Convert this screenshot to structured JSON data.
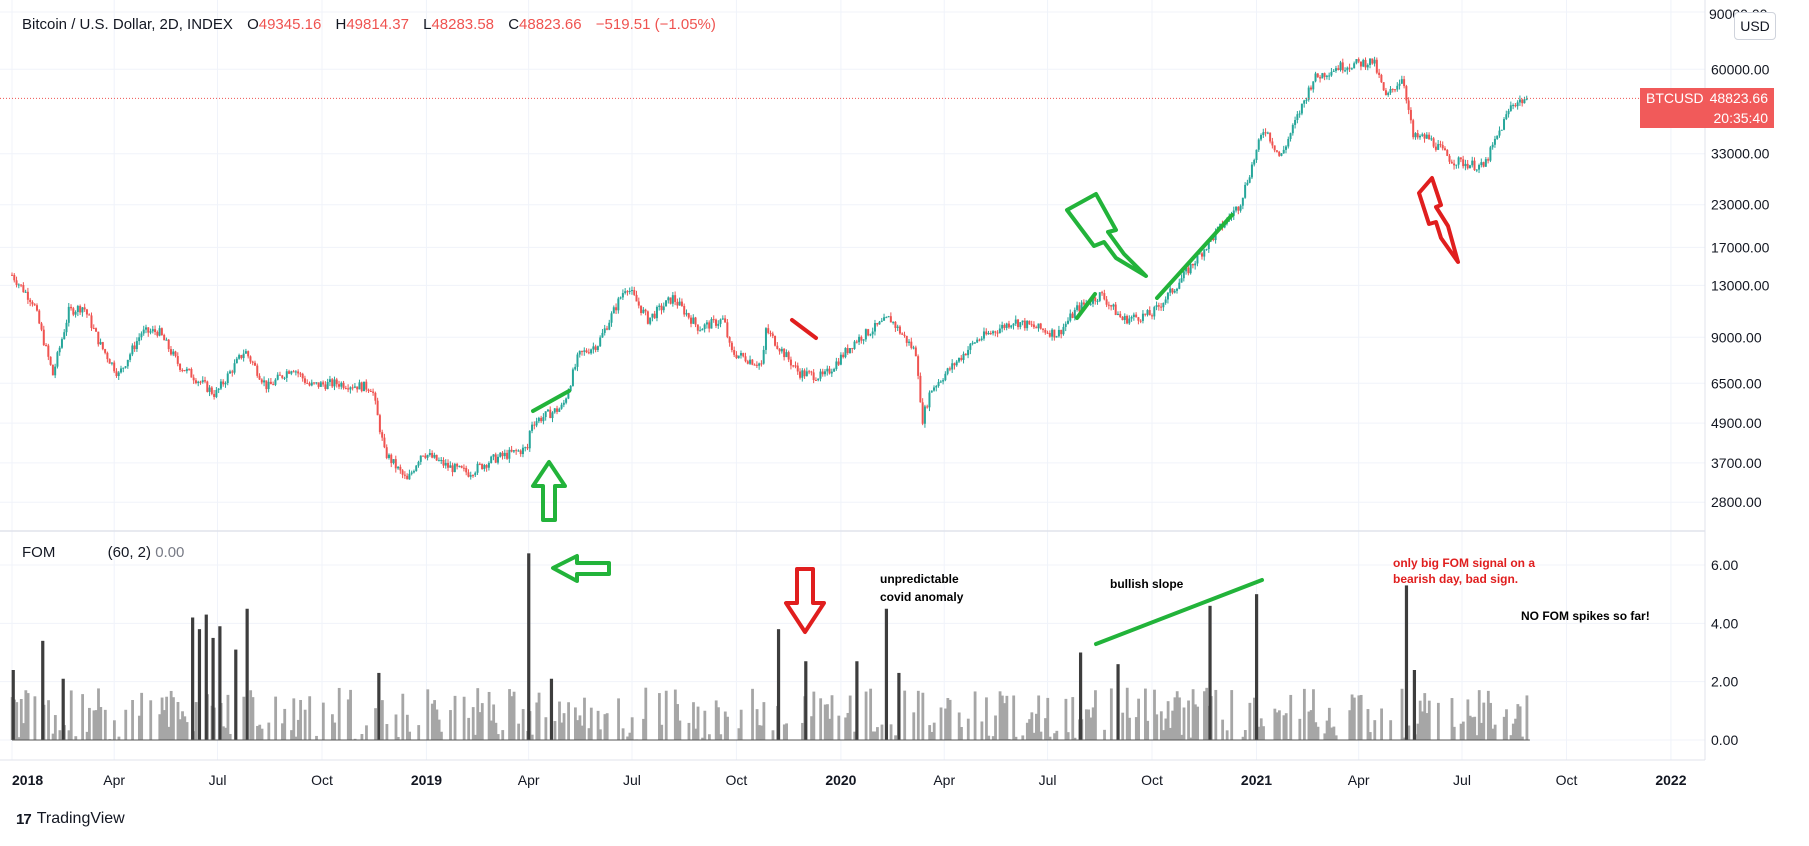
{
  "header": {
    "symbol": "Bitcoin / U.S. Dollar, 2D, INDEX",
    "o_label": "O",
    "o": "49345.16",
    "h_label": "H",
    "h": "49814.37",
    "l_label": "L",
    "l": "48283.58",
    "c_label": "C",
    "c": "48823.66",
    "change": "−519.51 (−1.05%)"
  },
  "currency_badge": "USD",
  "price_label": {
    "ticker": "BTCUSD",
    "price": "48823.66",
    "countdown": "20:35:40"
  },
  "indicator": {
    "name": "FOM",
    "params": "(60, 2)",
    "value": "0.00"
  },
  "branding": {
    "logo": "17",
    "name": "TradingView"
  },
  "annotations": [
    {
      "text": "unpredictable",
      "color": "#000000"
    },
    {
      "text": "covid anomaly",
      "color": "#000000"
    },
    {
      "text": "bullish slope",
      "color": "#000000"
    },
    {
      "text": "only big FOM signal on a",
      "color": "#e01e1e"
    },
    {
      "text": "bearish day, bad sign.",
      "color": "#e01e1e"
    },
    {
      "text": "NO FOM spikes so far!",
      "color": "#000000"
    }
  ],
  "colors": {
    "up": "#26a69a",
    "down": "#ef5350",
    "green_mark": "#22b33a",
    "red_mark": "#e01e1e",
    "bar_dark": "#3d3d3d",
    "bar_light": "#a6a6a6"
  },
  "chart_data": [
    {
      "type": "candlestick",
      "title": "Bitcoin / U.S. Dollar, 2D, INDEX",
      "y_scale": "log",
      "ylim": [
        2400,
        90000
      ],
      "y_ticks": [
        2800,
        3700,
        4900,
        6500,
        9000,
        13000,
        17000,
        23000,
        33000,
        60000,
        90000
      ],
      "y_tick_labels": [
        "2800.00",
        "3700.00",
        "4900.00",
        "6500.00",
        "9000.00",
        "13000.00",
        "17000.00",
        "23000.00",
        "33000.00",
        "60000.00",
        "90000.00"
      ],
      "x_range": [
        "2018-01-01",
        "2022-01-31"
      ],
      "x_ticks": [
        "2018-01-01",
        "2018-04-01",
        "2018-07-01",
        "2018-10-01",
        "2019-01-01",
        "2019-04-01",
        "2019-07-01",
        "2019-10-01",
        "2020-01-01",
        "2020-04-01",
        "2020-07-01",
        "2020-10-01",
        "2021-01-01",
        "2021-04-01",
        "2021-07-01",
        "2021-10-01",
        "2022-01-01"
      ],
      "x_tick_labels": [
        "2018",
        "Apr",
        "Jul",
        "Oct",
        "2019",
        "Apr",
        "Jul",
        "Oct",
        "2020",
        "Apr",
        "Jul",
        "Oct",
        "2021",
        "Apr",
        "Jul",
        "Oct",
        "2022"
      ],
      "last_price": 48823.66,
      "close_path": [
        [
          "2018-01-01",
          14000
        ],
        [
          "2018-01-20",
          11500
        ],
        [
          "2018-02-06",
          6900
        ],
        [
          "2018-02-20",
          10800
        ],
        [
          "2018-03-05",
          11200
        ],
        [
          "2018-03-20",
          8500
        ],
        [
          "2018-04-05",
          6900
        ],
        [
          "2018-04-25",
          9300
        ],
        [
          "2018-05-10",
          9400
        ],
        [
          "2018-05-28",
          7400
        ],
        [
          "2018-06-15",
          6600
        ],
        [
          "2018-06-29",
          6000
        ],
        [
          "2018-07-25",
          8200
        ],
        [
          "2018-08-14",
          6300
        ],
        [
          "2018-09-05",
          7300
        ],
        [
          "2018-09-20",
          6400
        ],
        [
          "2018-10-15",
          6500
        ],
        [
          "2018-11-14",
          6300
        ],
        [
          "2018-11-25",
          4000
        ],
        [
          "2018-12-15",
          3250
        ],
        [
          "2018-12-28",
          4000
        ],
        [
          "2019-01-20",
          3600
        ],
        [
          "2019-02-07",
          3450
        ],
        [
          "2019-03-01",
          3800
        ],
        [
          "2019-03-31",
          4100
        ],
        [
          "2019-04-03",
          4900
        ],
        [
          "2019-05-01",
          5500
        ],
        [
          "2019-05-15",
          7900
        ],
        [
          "2019-06-01",
          8600
        ],
        [
          "2019-06-26",
          13000
        ],
        [
          "2019-07-15",
          10200
        ],
        [
          "2019-08-06",
          11900
        ],
        [
          "2019-08-29",
          9600
        ],
        [
          "2019-09-20",
          10200
        ],
        [
          "2019-09-26",
          8100
        ],
        [
          "2019-10-24",
          7400
        ],
        [
          "2019-10-27",
          9500
        ],
        [
          "2019-11-25",
          7000
        ],
        [
          "2019-12-17",
          6800
        ],
        [
          "2020-01-14",
          8800
        ],
        [
          "2020-02-13",
          10300
        ],
        [
          "2020-03-08",
          8000
        ],
        [
          "2020-03-12",
          4900
        ],
        [
          "2020-03-20",
          6200
        ],
        [
          "2020-04-29",
          8800
        ],
        [
          "2020-06-01",
          10100
        ],
        [
          "2020-07-10",
          9200
        ],
        [
          "2020-07-27",
          11000
        ],
        [
          "2020-08-17",
          12200
        ],
        [
          "2020-09-05",
          10200
        ],
        [
          "2020-10-01",
          10600
        ],
        [
          "2020-10-21",
          12800
        ],
        [
          "2020-11-08",
          15500
        ],
        [
          "2020-11-30",
          19500
        ],
        [
          "2020-12-17",
          23000
        ],
        [
          "2021-01-08",
          40000
        ],
        [
          "2021-01-22",
          32000
        ],
        [
          "2021-02-20",
          56000
        ],
        [
          "2021-03-13",
          61000
        ],
        [
          "2021-04-14",
          63500
        ],
        [
          "2021-04-25",
          49000
        ],
        [
          "2021-05-10",
          57000
        ],
        [
          "2021-05-19",
          37000
        ],
        [
          "2021-06-01",
          37000
        ],
        [
          "2021-06-22",
          31500
        ],
        [
          "2021-07-20",
          30000
        ],
        [
          "2021-08-14",
          47000
        ],
        [
          "2021-08-28",
          48823.66
        ]
      ]
    },
    {
      "type": "bar",
      "title": "FOM (60, 2)",
      "ylim": [
        0,
        7
      ],
      "y_ticks": [
        0,
        2,
        4,
        6
      ],
      "y_tick_labels": [
        "0.00",
        "2.00",
        "4.00",
        "6.00"
      ],
      "spikes": [
        [
          "2018-01-02",
          2.4
        ],
        [
          "2018-01-28",
          3.4
        ],
        [
          "2018-02-15",
          2.1
        ],
        [
          "2018-06-09",
          4.2
        ],
        [
          "2018-06-15",
          3.8
        ],
        [
          "2018-06-21",
          4.3
        ],
        [
          "2018-06-27",
          3.5
        ],
        [
          "2018-07-03",
          3.9
        ],
        [
          "2018-07-17",
          3.1
        ],
        [
          "2018-07-27",
          4.5
        ],
        [
          "2018-11-20",
          2.3
        ],
        [
          "2019-04-01",
          6.4
        ],
        [
          "2019-04-21",
          2.1
        ],
        [
          "2019-11-07",
          3.8
        ],
        [
          "2019-12-01",
          2.7
        ],
        [
          "2020-01-15",
          2.7
        ],
        [
          "2020-02-10",
          4.5
        ],
        [
          "2020-02-21",
          2.3
        ],
        [
          "2020-07-30",
          3.0
        ],
        [
          "2020-09-01",
          2.6
        ],
        [
          "2020-11-21",
          4.6
        ],
        [
          "2021-01-01",
          5.0
        ],
        [
          "2021-05-13",
          5.3
        ],
        [
          "2021-05-20",
          2.4
        ]
      ]
    }
  ]
}
